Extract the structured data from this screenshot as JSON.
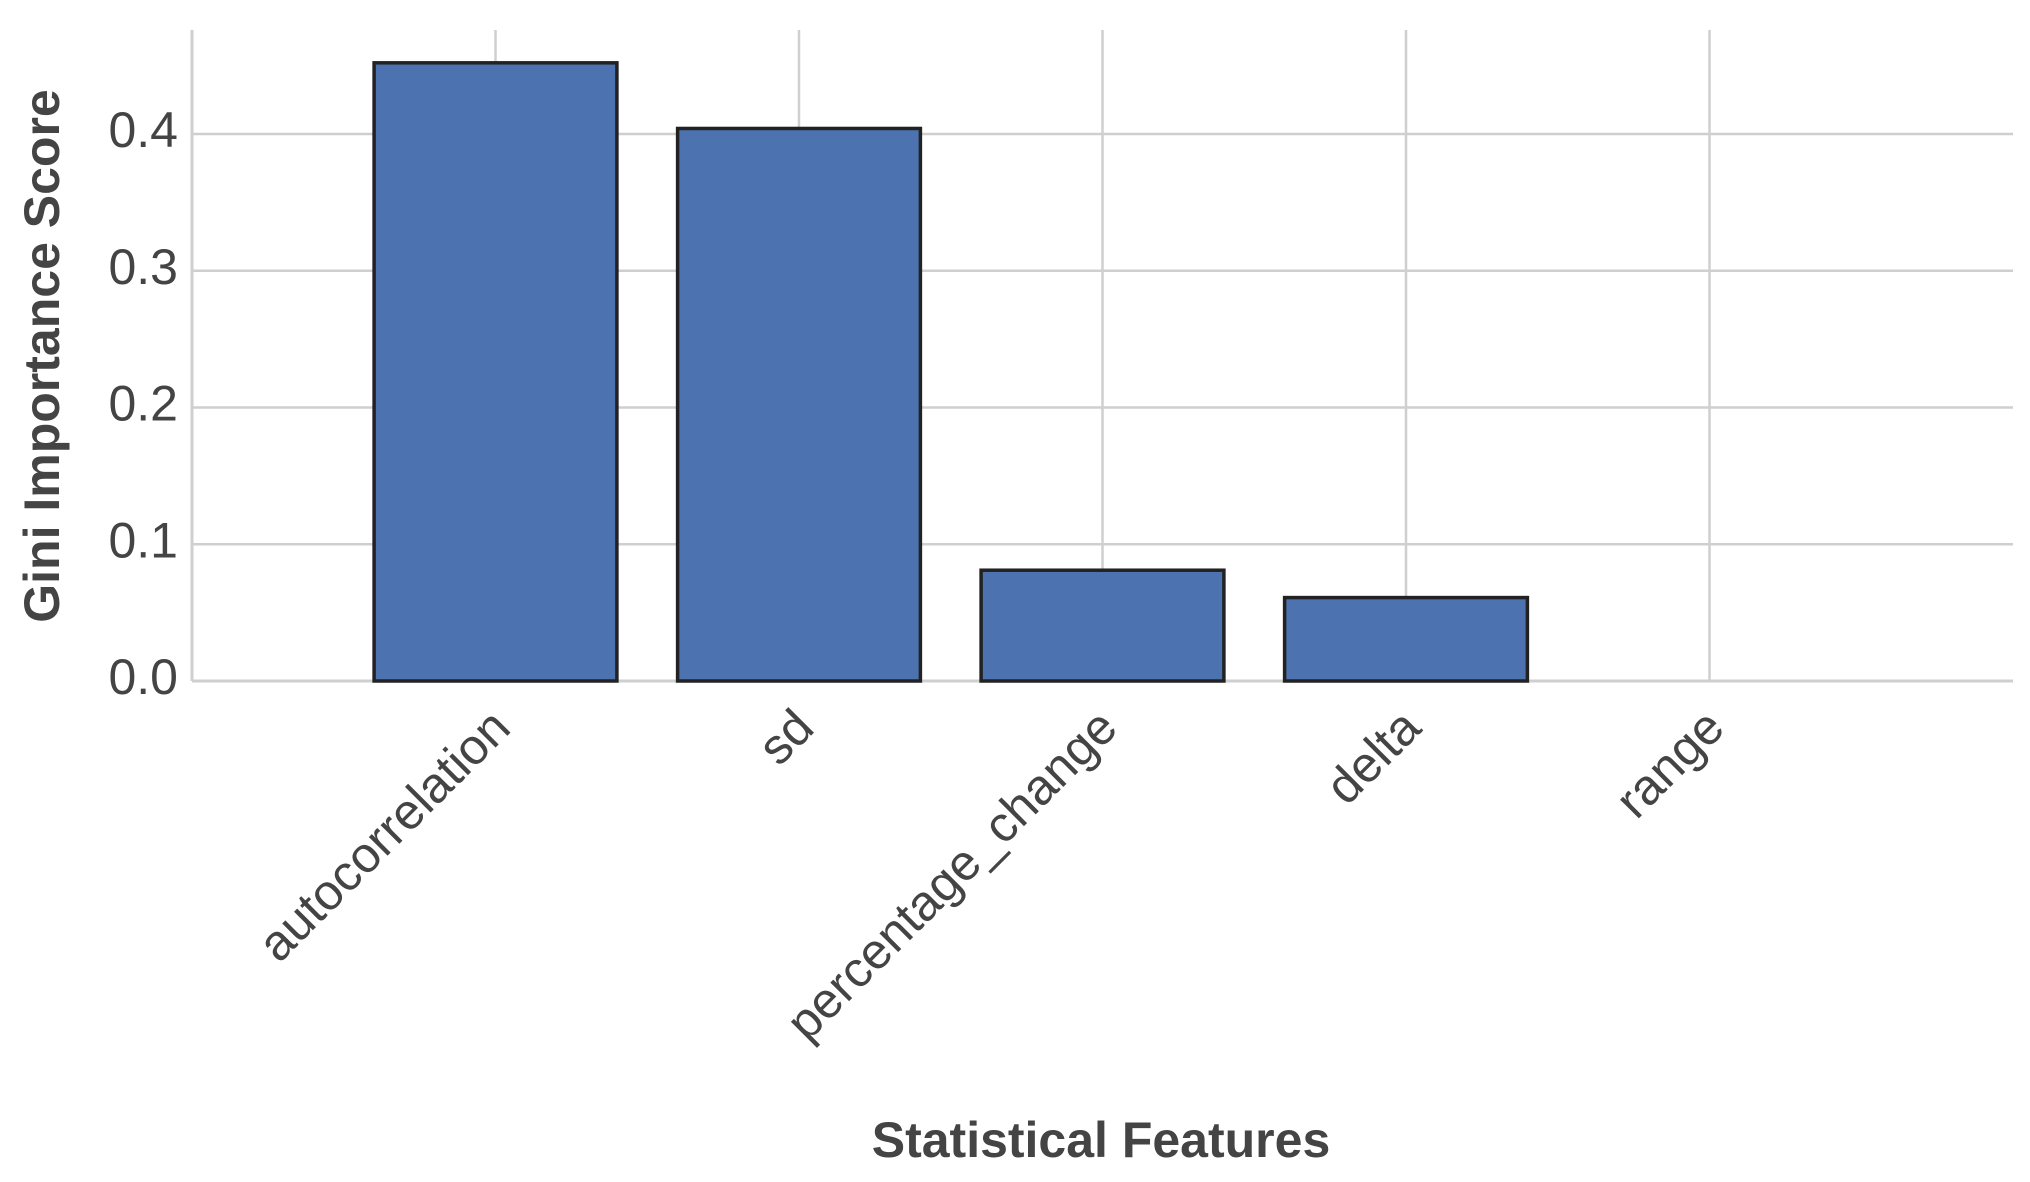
{
  "chart_data": {
    "type": "bar",
    "x_label": "Statistical Features",
    "y_label": "Gini Importance Score",
    "categories": [
      "autocorrelation",
      "sd",
      "percentage_change",
      "delta",
      "range"
    ],
    "values": [
      0.452,
      0.404,
      0.081,
      0.061,
      0.0
    ],
    "color": "#4c72b0",
    "edge_color": "#222222",
    "ylim": [
      0,
      0.476
    ],
    "yticks": [
      {
        "value": 0,
        "label": "0.0"
      },
      0.1,
      0.2,
      0.3,
      0.4
    ],
    "grid": true
  }
}
